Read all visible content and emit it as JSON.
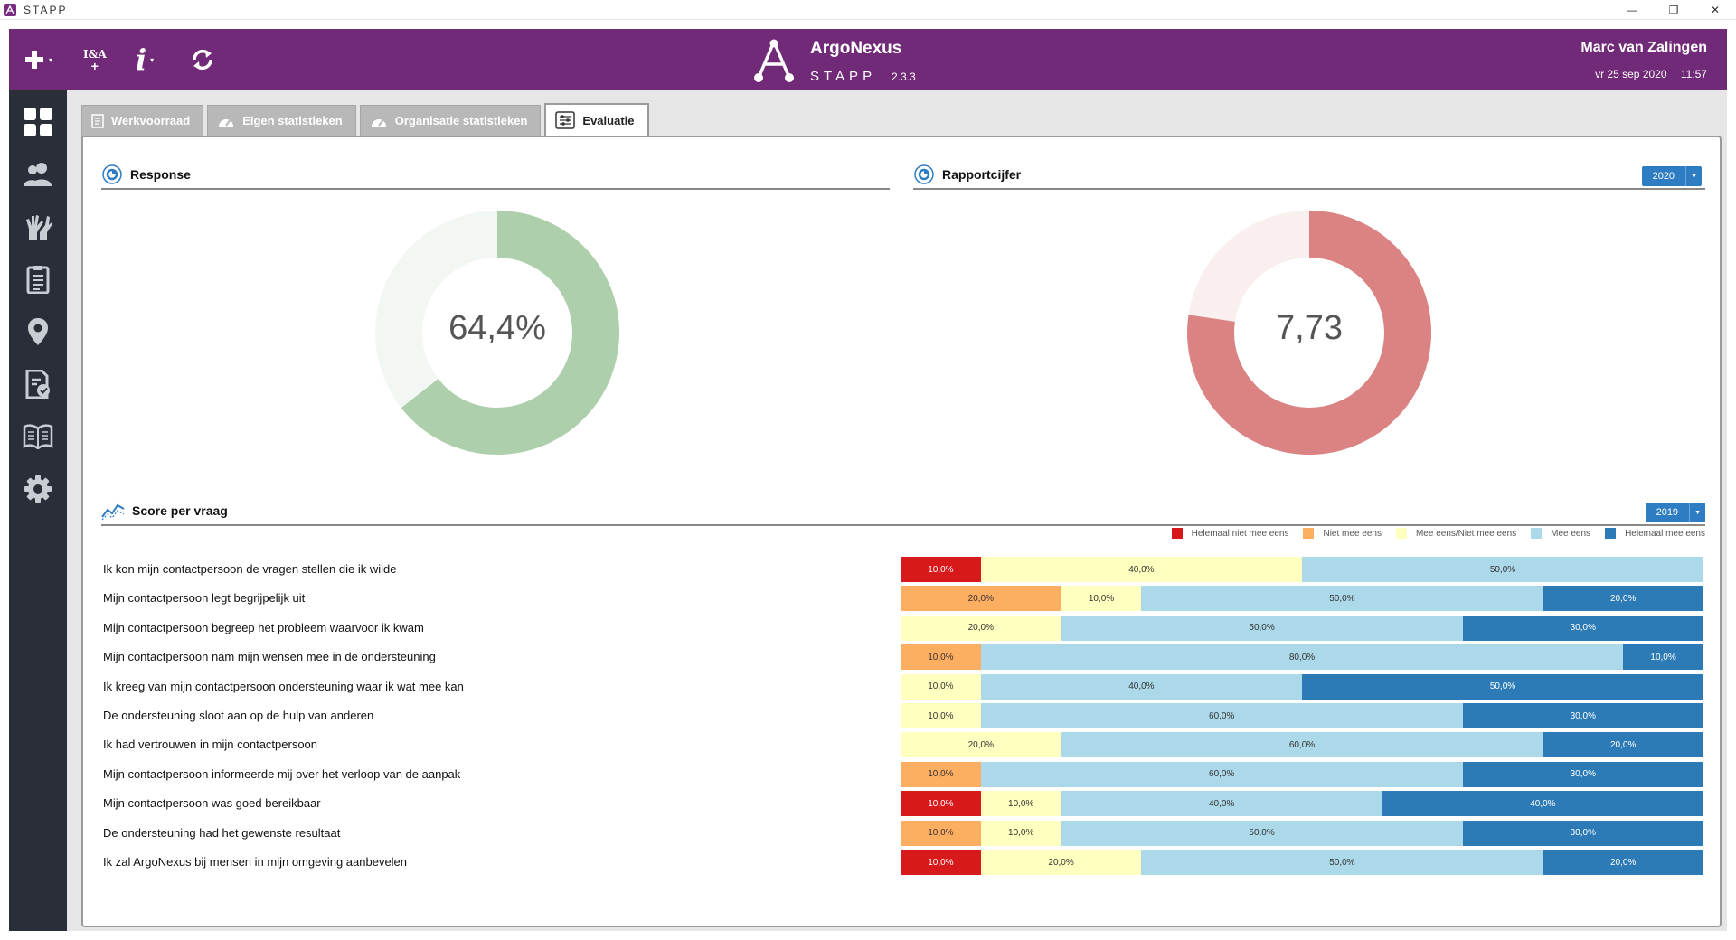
{
  "window": {
    "title": "STAPP",
    "minimize": "—",
    "restore": "❐",
    "close": "✕"
  },
  "header": {
    "brand": "ArgoNexus",
    "app": "STAPP",
    "version": "2.3.3",
    "ia_label": "I&A",
    "user": "Marc van Zalingen",
    "date": "vr 25 sep 2020",
    "time": "11:57"
  },
  "sidebar": {
    "items": [
      "dashboard",
      "clients",
      "participation",
      "reports",
      "locations",
      "evaluation-docs",
      "manual",
      "settings"
    ]
  },
  "tabs": [
    {
      "label": "Werkvoorraad",
      "icon": "list-icon"
    },
    {
      "label": "Eigen statistieken",
      "icon": "gauge-icon"
    },
    {
      "label": "Organisatie statistieken",
      "icon": "gauge-icon"
    },
    {
      "label": "Evaluatie",
      "icon": "sliders-icon",
      "active": true
    }
  ],
  "response": {
    "title": "Response",
    "value_label": "64,4%",
    "fraction": 0.644,
    "color": "#aecfab",
    "rest_color": "#f3f7f3"
  },
  "rapport": {
    "title": "Rapportcijfer",
    "year": "2020",
    "value_label": "7,73",
    "fraction": 0.773,
    "color": "#db8283",
    "rest_color": "#f9efef"
  },
  "score": {
    "title": "Score per vraag",
    "year": "2019",
    "legend": [
      {
        "label": "Helemaal niet mee eens",
        "color": "#d7191c"
      },
      {
        "label": "Niet mee eens",
        "color": "#fdae61"
      },
      {
        "label": "Mee eens/Niet mee eens",
        "color": "#ffffbf"
      },
      {
        "label": "Mee eens",
        "color": "#abd9e9"
      },
      {
        "label": "Helemaal mee eens",
        "color": "#2c7bb6"
      }
    ]
  },
  "chart_data": {
    "type": "bar",
    "stacked": true,
    "orientation": "horizontal",
    "categories": [
      "Ik kon mijn contactpersoon de vragen stellen die ik wilde",
      "Mijn contactpersoon legt begrijpelijk uit",
      "Mijn contactpersoon begreep het probleem waarvoor ik kwam",
      "Mijn contactpersoon nam mijn wensen mee in de ondersteuning",
      "Ik kreeg van mijn contactpersoon ondersteuning waar ik wat mee kan",
      "De ondersteuning sloot aan op de hulp van anderen",
      "Ik had vertrouwen in mijn contactpersoon",
      "Mijn contactpersoon informeerde mij over het verloop van de aanpak",
      "Mijn contactpersoon was goed bereikbaar",
      "De ondersteuning had het gewenste resultaat",
      "Ik zal ArgoNexus bij mensen in mijn omgeving aanbevelen"
    ],
    "series": [
      {
        "name": "Helemaal niet mee eens",
        "values": [
          10,
          0,
          0,
          0,
          0,
          0,
          0,
          0,
          10,
          0,
          10
        ]
      },
      {
        "name": "Niet mee eens",
        "values": [
          0,
          20,
          0,
          10,
          0,
          0,
          0,
          10,
          0,
          10,
          0
        ]
      },
      {
        "name": "Mee eens/Niet mee eens",
        "values": [
          40,
          10,
          20,
          0,
          10,
          10,
          20,
          0,
          10,
          10,
          20
        ]
      },
      {
        "name": "Mee eens",
        "values": [
          50,
          50,
          50,
          80,
          40,
          60,
          60,
          60,
          40,
          50,
          50
        ]
      },
      {
        "name": "Helemaal mee eens",
        "values": [
          0,
          20,
          30,
          10,
          50,
          30,
          20,
          30,
          40,
          30,
          20
        ]
      }
    ],
    "xlim": [
      0,
      100
    ],
    "legend_position": "top-right"
  }
}
